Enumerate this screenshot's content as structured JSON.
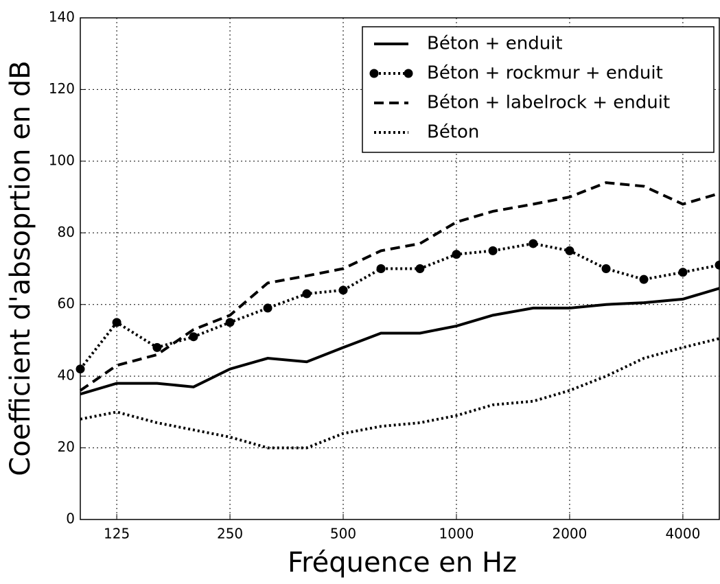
{
  "chart_data": {
    "type": "line",
    "x_label": "Fréquence en Hz",
    "y_label": "Coefficient d'absoprtion en dB",
    "x": [
      100,
      125,
      160,
      200,
      250,
      315,
      400,
      500,
      630,
      800,
      1000,
      1250,
      1600,
      2000,
      2500,
      3150,
      4000,
      5000
    ],
    "series": [
      {
        "name": "Béton + enduit",
        "color": "#000000",
        "style": "solid",
        "values": [
          35,
          38,
          38,
          37,
          42,
          45,
          44,
          48,
          52,
          52,
          54,
          57,
          59,
          59,
          60,
          60.5,
          61.5,
          64.5
        ]
      },
      {
        "name": "Béton + rockmur + enduit",
        "color": "#000000",
        "style": "dotted",
        "marker": "o",
        "values": [
          42,
          55,
          48,
          51,
          55,
          59,
          63,
          64,
          70,
          70,
          74,
          75,
          77,
          75,
          70,
          67,
          69,
          71
        ]
      },
      {
        "name": "Béton + labelrock + enduit",
        "color": "#000000",
        "style": "dashed",
        "values": [
          36,
          43,
          46,
          53,
          57,
          66,
          68,
          70,
          75,
          77,
          83,
          86,
          88,
          90,
          94,
          93,
          88,
          91
        ]
      },
      {
        "name": "Béton",
        "color": "#000000",
        "style": "dotted",
        "values": [
          28,
          30,
          27,
          25,
          23,
          20,
          20,
          24,
          26,
          27,
          29,
          32,
          33,
          36,
          40,
          45,
          48,
          50.5
        ]
      }
    ],
    "xscale": "log",
    "xlim": [
      100,
      5000
    ],
    "xticks": [
      125,
      250,
      500,
      1000,
      2000,
      4000
    ],
    "ylim": [
      0,
      140
    ],
    "yticks": [
      0,
      20,
      40,
      60,
      80,
      100,
      120,
      140
    ],
    "grid": true,
    "legend": "upper right"
  }
}
